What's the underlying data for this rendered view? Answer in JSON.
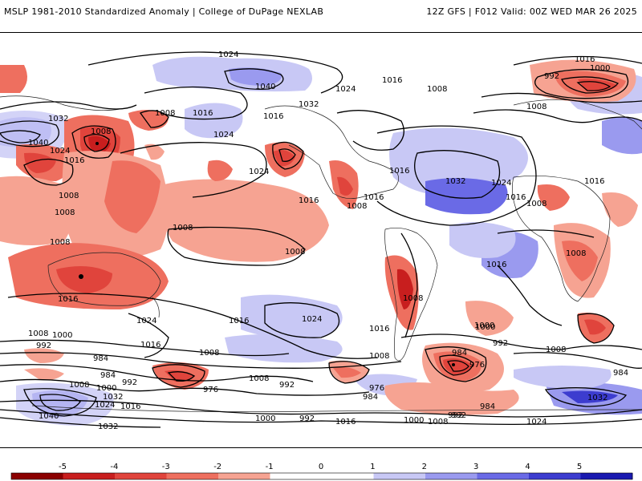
{
  "header": {
    "title": "MSLP 1981-2010 Standardized Anomaly | College of DuPage NEXLAB",
    "run_info": "12Z GFS | F012 Valid: 00Z WED MAR 26 2025"
  },
  "colorbar": {
    "ticks": [
      "-5",
      "-4",
      "-3",
      "-2",
      "-1",
      "0",
      "1",
      "2",
      "3",
      "4",
      "5"
    ],
    "colors": [
      "#8b0000",
      "#c81e1e",
      "#e0443c",
      "#ee6f5f",
      "#f6a392",
      "#ffffff",
      "#ffffff",
      "#c8c8f5",
      "#9a9aef",
      "#6a6ae6",
      "#3c3ccf",
      "#1a1ab0"
    ]
  },
  "isobar_labels": [
    {
      "id": "l1",
      "text": "1024"
    },
    {
      "id": "l2",
      "text": "1040"
    },
    {
      "id": "l3",
      "text": "1032"
    },
    {
      "id": "l4",
      "text": "1016"
    },
    {
      "id": "l5",
      "text": "1008"
    },
    {
      "id": "l6",
      "text": "1024"
    },
    {
      "id": "l7",
      "text": "1000"
    },
    {
      "id": "l8",
      "text": "992"
    },
    {
      "id": "l9",
      "text": "1016"
    },
    {
      "id": "l10",
      "text": "1008"
    },
    {
      "id": "l11",
      "text": "1032"
    },
    {
      "id": "l12",
      "text": "1040"
    },
    {
      "id": "l13",
      "text": "1024"
    },
    {
      "id": "l14",
      "text": "1016"
    },
    {
      "id": "l15",
      "text": "1008"
    },
    {
      "id": "l16",
      "text": "1008"
    },
    {
      "id": "l17",
      "text": "1008"
    },
    {
      "id": "l18",
      "text": "1008"
    },
    {
      "id": "l19",
      "text": "1008"
    },
    {
      "id": "l20",
      "text": "1016"
    },
    {
      "id": "l21",
      "text": "1024"
    },
    {
      "id": "l22",
      "text": "1016"
    },
    {
      "id": "l23",
      "text": "1024"
    },
    {
      "id": "l24",
      "text": "1016"
    },
    {
      "id": "l25",
      "text": "1016"
    },
    {
      "id": "l26",
      "text": "1016"
    },
    {
      "id": "l27",
      "text": "1008"
    },
    {
      "id": "l28",
      "text": "1032"
    },
    {
      "id": "l29",
      "text": "1024"
    },
    {
      "id": "l30",
      "text": "1016"
    },
    {
      "id": "l31",
      "text": "1008"
    },
    {
      "id": "l32",
      "text": "1016"
    },
    {
      "id": "l33",
      "text": "1008"
    },
    {
      "id": "l34",
      "text": "1008"
    },
    {
      "id": "l35",
      "text": "1008"
    },
    {
      "id": "l36",
      "text": "1016"
    },
    {
      "id": "l37",
      "text": "1024"
    },
    {
      "id": "l38",
      "text": "1016"
    },
    {
      "id": "l39",
      "text": "1024"
    },
    {
      "id": "l40",
      "text": "1016"
    },
    {
      "id": "l41",
      "text": "1008"
    },
    {
      "id": "l42",
      "text": "1016"
    },
    {
      "id": "l43",
      "text": "1000"
    },
    {
      "id": "l44",
      "text": "992"
    },
    {
      "id": "l45",
      "text": "1008"
    },
    {
      "id": "l46",
      "text": "1000"
    },
    {
      "id": "l47",
      "text": "992"
    },
    {
      "id": "l48",
      "text": "1016"
    },
    {
      "id": "l49",
      "text": "1008"
    },
    {
      "id": "l50",
      "text": "984"
    },
    {
      "id": "l51",
      "text": "976"
    },
    {
      "id": "l52",
      "text": "992"
    },
    {
      "id": "l53",
      "text": "1008"
    },
    {
      "id": "l54",
      "text": "984"
    },
    {
      "id": "l55",
      "text": "984"
    },
    {
      "id": "l56",
      "text": "992"
    },
    {
      "id": "l57",
      "text": "1008"
    },
    {
      "id": "l58",
      "text": "1000"
    },
    {
      "id": "l59",
      "text": "1032"
    },
    {
      "id": "l60",
      "text": "1024"
    },
    {
      "id": "l61",
      "text": "1016"
    },
    {
      "id": "l62",
      "text": "1040"
    },
    {
      "id": "l63",
      "text": "1032"
    },
    {
      "id": "l64",
      "text": "976"
    },
    {
      "id": "l65",
      "text": "1000"
    },
    {
      "id": "l66",
      "text": "992"
    },
    {
      "id": "l67",
      "text": "976"
    },
    {
      "id": "l68",
      "text": "984"
    },
    {
      "id": "l69",
      "text": "1008"
    },
    {
      "id": "l70",
      "text": "1000"
    },
    {
      "id": "l71",
      "text": "992"
    },
    {
      "id": "l72",
      "text": "1016"
    },
    {
      "id": "l73",
      "text": "1000"
    },
    {
      "id": "l74",
      "text": "1008"
    },
    {
      "id": "l75",
      "text": "992"
    },
    {
      "id": "l76",
      "text": "984"
    },
    {
      "id": "l77",
      "text": "1024"
    },
    {
      "id": "l78",
      "text": "1032"
    },
    {
      "id": "l79",
      "text": "984"
    },
    {
      "id": "l80",
      "text": "1008"
    }
  ]
}
